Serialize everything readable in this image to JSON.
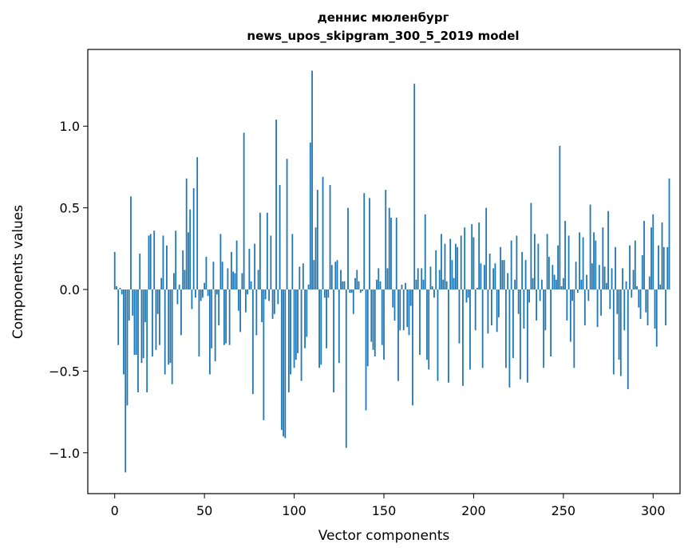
{
  "chart_data": {
    "type": "bar",
    "title_line1": "деннис мюленбург",
    "title_line2": "news_upos_skipgram_300_5_2019 model",
    "xlabel": "Vector components",
    "ylabel": "Components values",
    "xlim": [
      -15,
      315
    ],
    "ylim": [
      -1.25,
      1.47
    ],
    "x_ticks": [
      0,
      50,
      100,
      150,
      200,
      250,
      300
    ],
    "y_ticks": [
      -1.0,
      -0.5,
      0.0,
      0.5,
      1.0
    ],
    "y_tick_labels": [
      "−1.0",
      "−0.5",
      "0.0",
      "0.5",
      "1.0"
    ],
    "bar_color": "#1f77b4",
    "grid": false,
    "values": [
      0.23,
      0.02,
      -0.34,
      0.01,
      -0.03,
      -0.52,
      -1.12,
      -0.71,
      -0.19,
      0.57,
      -0.16,
      -0.4,
      -0.4,
      -0.63,
      0.22,
      -0.45,
      -0.42,
      -0.2,
      -0.63,
      0.33,
      0.34,
      -0.41,
      0.36,
      -0.37,
      -0.15,
      -0.34,
      0.07,
      0.33,
      -0.52,
      0.27,
      -0.46,
      -0.45,
      -0.58,
      0.1,
      0.36,
      -0.09,
      0.03,
      -0.28,
      0.24,
      0.12,
      0.68,
      0.35,
      0.49,
      -0.12,
      0.62,
      -0.05,
      0.81,
      -0.41,
      -0.07,
      -0.05,
      0.04,
      0.2,
      -0.04,
      -0.52,
      -0.36,
      0.17,
      -0.44,
      -0.03,
      -0.22,
      0.34,
      0.17,
      -0.34,
      -0.33,
      0.13,
      -0.34,
      0.23,
      0.11,
      0.1,
      0.3,
      -0.13,
      -0.26,
      0.1,
      0.96,
      -0.14,
      -0.03,
      0.25,
      0.05,
      -0.64,
      0.28,
      -0.28,
      0.12,
      0.47,
      -0.2,
      -0.8,
      -0.06,
      0.47,
      -0.07,
      0.33,
      -0.18,
      -0.15,
      1.04,
      -0.09,
      0.64,
      -0.86,
      -0.9,
      -0.91,
      0.8,
      -0.63,
      -0.52,
      0.34,
      -0.48,
      -0.43,
      -0.39,
      0.14,
      -0.56,
      0.16,
      -0.36,
      -0.29,
      0.03,
      0.9,
      1.34,
      0.18,
      0.38,
      0.61,
      -0.48,
      -0.46,
      0.69,
      -0.05,
      -0.36,
      -0.05,
      0.64,
      0.15,
      -0.63,
      0.17,
      0.18,
      -0.45,
      0.12,
      0.05,
      0.05,
      -0.97,
      0.5,
      -0.02,
      -0.02,
      -0.15,
      0.07,
      0.12,
      0.05,
      -0.02,
      -0.01,
      0.59,
      -0.74,
      -0.47,
      0.56,
      -0.32,
      -0.37,
      -0.41,
      0.06,
      0.13,
      0.05,
      -0.34,
      -0.43,
      0.61,
      0.13,
      0.5,
      0.44,
      -0.11,
      -0.19,
      0.44,
      -0.56,
      -0.25,
      0.03,
      -0.25,
      0.04,
      -0.23,
      -0.28,
      -0.1,
      -0.71,
      1.26,
      0.06,
      0.13,
      -0.4,
      0.13,
      0.06,
      0.46,
      -0.43,
      -0.49,
      0.14,
      0.02,
      -0.05,
      0.24,
      -0.56,
      0.12,
      0.34,
      0.06,
      0.28,
      0.05,
      -0.57,
      0.31,
      0.18,
      0.07,
      0.28,
      0.26,
      -0.33,
      0.33,
      -0.59,
      0.38,
      -0.08,
      -0.05,
      -0.49,
      0.4,
      0.32,
      -0.25,
      0.01,
      0.41,
      0.16,
      -0.48,
      0.15,
      0.5,
      -0.27,
      0.22,
      -0.22,
      0.13,
      0.16,
      -0.26,
      -0.17,
      0.26,
      0.18,
      0.18,
      -0.48,
      0.1,
      -0.6,
      0.3,
      -0.42,
      0.06,
      0.33,
      -0.15,
      -0.55,
      0.23,
      -0.24,
      0.18,
      -0.57,
      -0.08,
      0.53,
      0.07,
      0.34,
      -0.19,
      0.28,
      -0.07,
      0.06,
      -0.48,
      -0.25,
      0.34,
      0.2,
      -0.41,
      0.15,
      0.09,
      0.06,
      0.27,
      0.88,
      0.02,
      0.07,
      0.42,
      -0.19,
      0.33,
      -0.32,
      -0.07,
      -0.48,
      0.17,
      -0.02,
      0.35,
      0.06,
      0.32,
      -0.22,
      0.09,
      -0.07,
      0.52,
      0.16,
      0.35,
      0.3,
      -0.23,
      0.15,
      -0.16,
      0.38,
      0.14,
      0.04,
      0.48,
      -0.12,
      0.13,
      -0.52,
      0.26,
      -0.15,
      -0.43,
      -0.53,
      0.13,
      -0.25,
      0.05,
      -0.61,
      0.27,
      -0.05,
      0.12,
      0.3,
      0.02,
      -0.11,
      -0.18,
      0.21,
      0.42,
      -0.14,
      -0.22,
      0.08,
      0.38,
      0.46,
      -0.24,
      -0.35,
      0.27,
      0.03,
      0.41,
      0.26,
      -0.22,
      0.26,
      0.68
    ]
  }
}
